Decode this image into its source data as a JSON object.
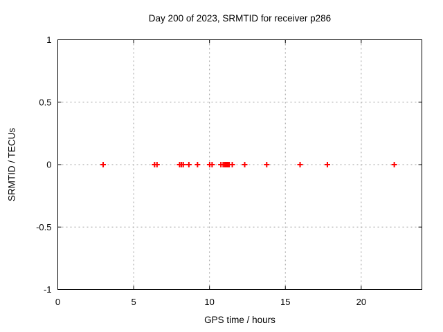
{
  "chart_data": {
    "type": "scatter",
    "title": "Day 200 of 2023, SRMTID for receiver p286",
    "xlabel": "GPS time / hours",
    "ylabel": "SRMTID / TECUs",
    "xlim": [
      0,
      24
    ],
    "ylim": [
      -1,
      1
    ],
    "xticks": [
      0,
      5,
      10,
      15,
      20
    ],
    "yticks": [
      -1,
      -0.5,
      0,
      0.5,
      1
    ],
    "grid": true,
    "legend": "none",
    "marker": "plus",
    "marker_color": "#ff0000",
    "grid_color": "#9e9e9e",
    "border_color": "#000000",
    "series": [
      {
        "name": "SRMTID",
        "x": [
          2.99,
          6.38,
          6.54,
          8.03,
          8.15,
          8.27,
          8.64,
          9.21,
          10.01,
          10.17,
          10.75,
          10.9,
          11.0,
          11.08,
          11.15,
          11.22,
          11.3,
          11.5,
          12.32,
          13.77,
          15.97,
          17.77,
          22.18
        ],
        "y": [
          0,
          0,
          0,
          0,
          0,
          0,
          0,
          0,
          0,
          0,
          0,
          0,
          0,
          0,
          0,
          0,
          0,
          0,
          0,
          0,
          0,
          0,
          0
        ]
      }
    ]
  }
}
